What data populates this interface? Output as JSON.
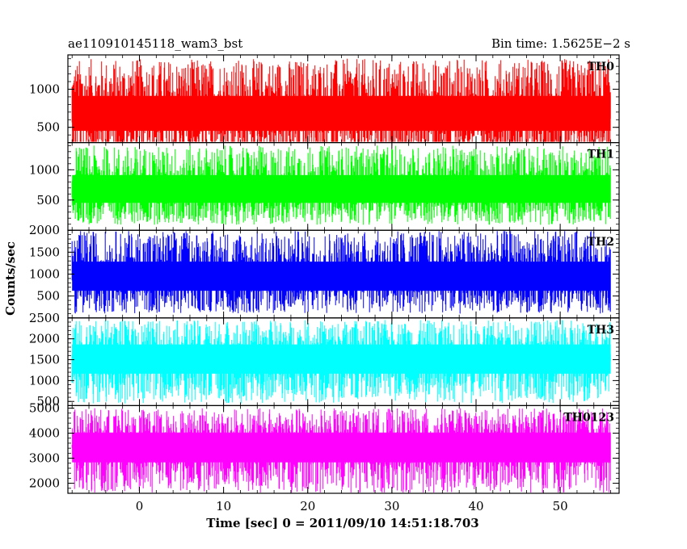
{
  "header": {
    "left_title": "ae110910145118_wam3_bst",
    "right_title": "Bin time: 1.5625E−2 s"
  },
  "axes": {
    "xlabel": "Time [sec] 0 = 2011/09/10 14:51:18.703",
    "ylabel": "Counts/sec"
  },
  "chart_data": {
    "type": "line",
    "title": "ae110910145118_wam3_bst",
    "subtitle": "Bin time: 1.5625E−2 s",
    "xlabel": "Time [sec] 0 = 2011/09/10 14:51:18.703",
    "ylabel": "Counts/sec",
    "xlim": [
      -8.5,
      57
    ],
    "x_data_range": [
      -8,
      56
    ],
    "x_ticks": [
      0,
      10,
      20,
      30,
      40,
      50
    ],
    "bin_time": 0.015625,
    "grid": false,
    "series": [
      {
        "name": "TH0",
        "color": "#ff0000",
        "ylim": [
          300,
          1450
        ],
        "y_ticks": [
          500,
          1000
        ],
        "baseline": 650,
        "noise_low": 90,
        "noise_high": 1400
      },
      {
        "name": "TH1",
        "color": "#00ff00",
        "ylim": [
          0,
          1450
        ],
        "y_ticks": [
          500,
          1000
        ],
        "baseline": 650,
        "noise_low": 90,
        "noise_high": 1400
      },
      {
        "name": "TH2",
        "color": "#0000ff",
        "ylim": [
          0,
          2000
        ],
        "y_ticks": [
          500,
          1000,
          1500,
          2000
        ],
        "baseline": 900,
        "noise_low": 100,
        "noise_high": 2000
      },
      {
        "name": "TH3",
        "color": "#00ffff",
        "ylim": [
          400,
          2500
        ],
        "y_ticks": [
          500,
          1000,
          1500,
          2000,
          2500
        ],
        "baseline": 1550,
        "noise_low": 450,
        "noise_high": 2450
      },
      {
        "name": "TH0123",
        "color": "#ff00ff",
        "ylim": [
          1600,
          5100
        ],
        "y_ticks": [
          2000,
          3000,
          4000,
          5000
        ],
        "baseline": 3500,
        "noise_low": 1600,
        "noise_high": 5000
      }
    ]
  }
}
